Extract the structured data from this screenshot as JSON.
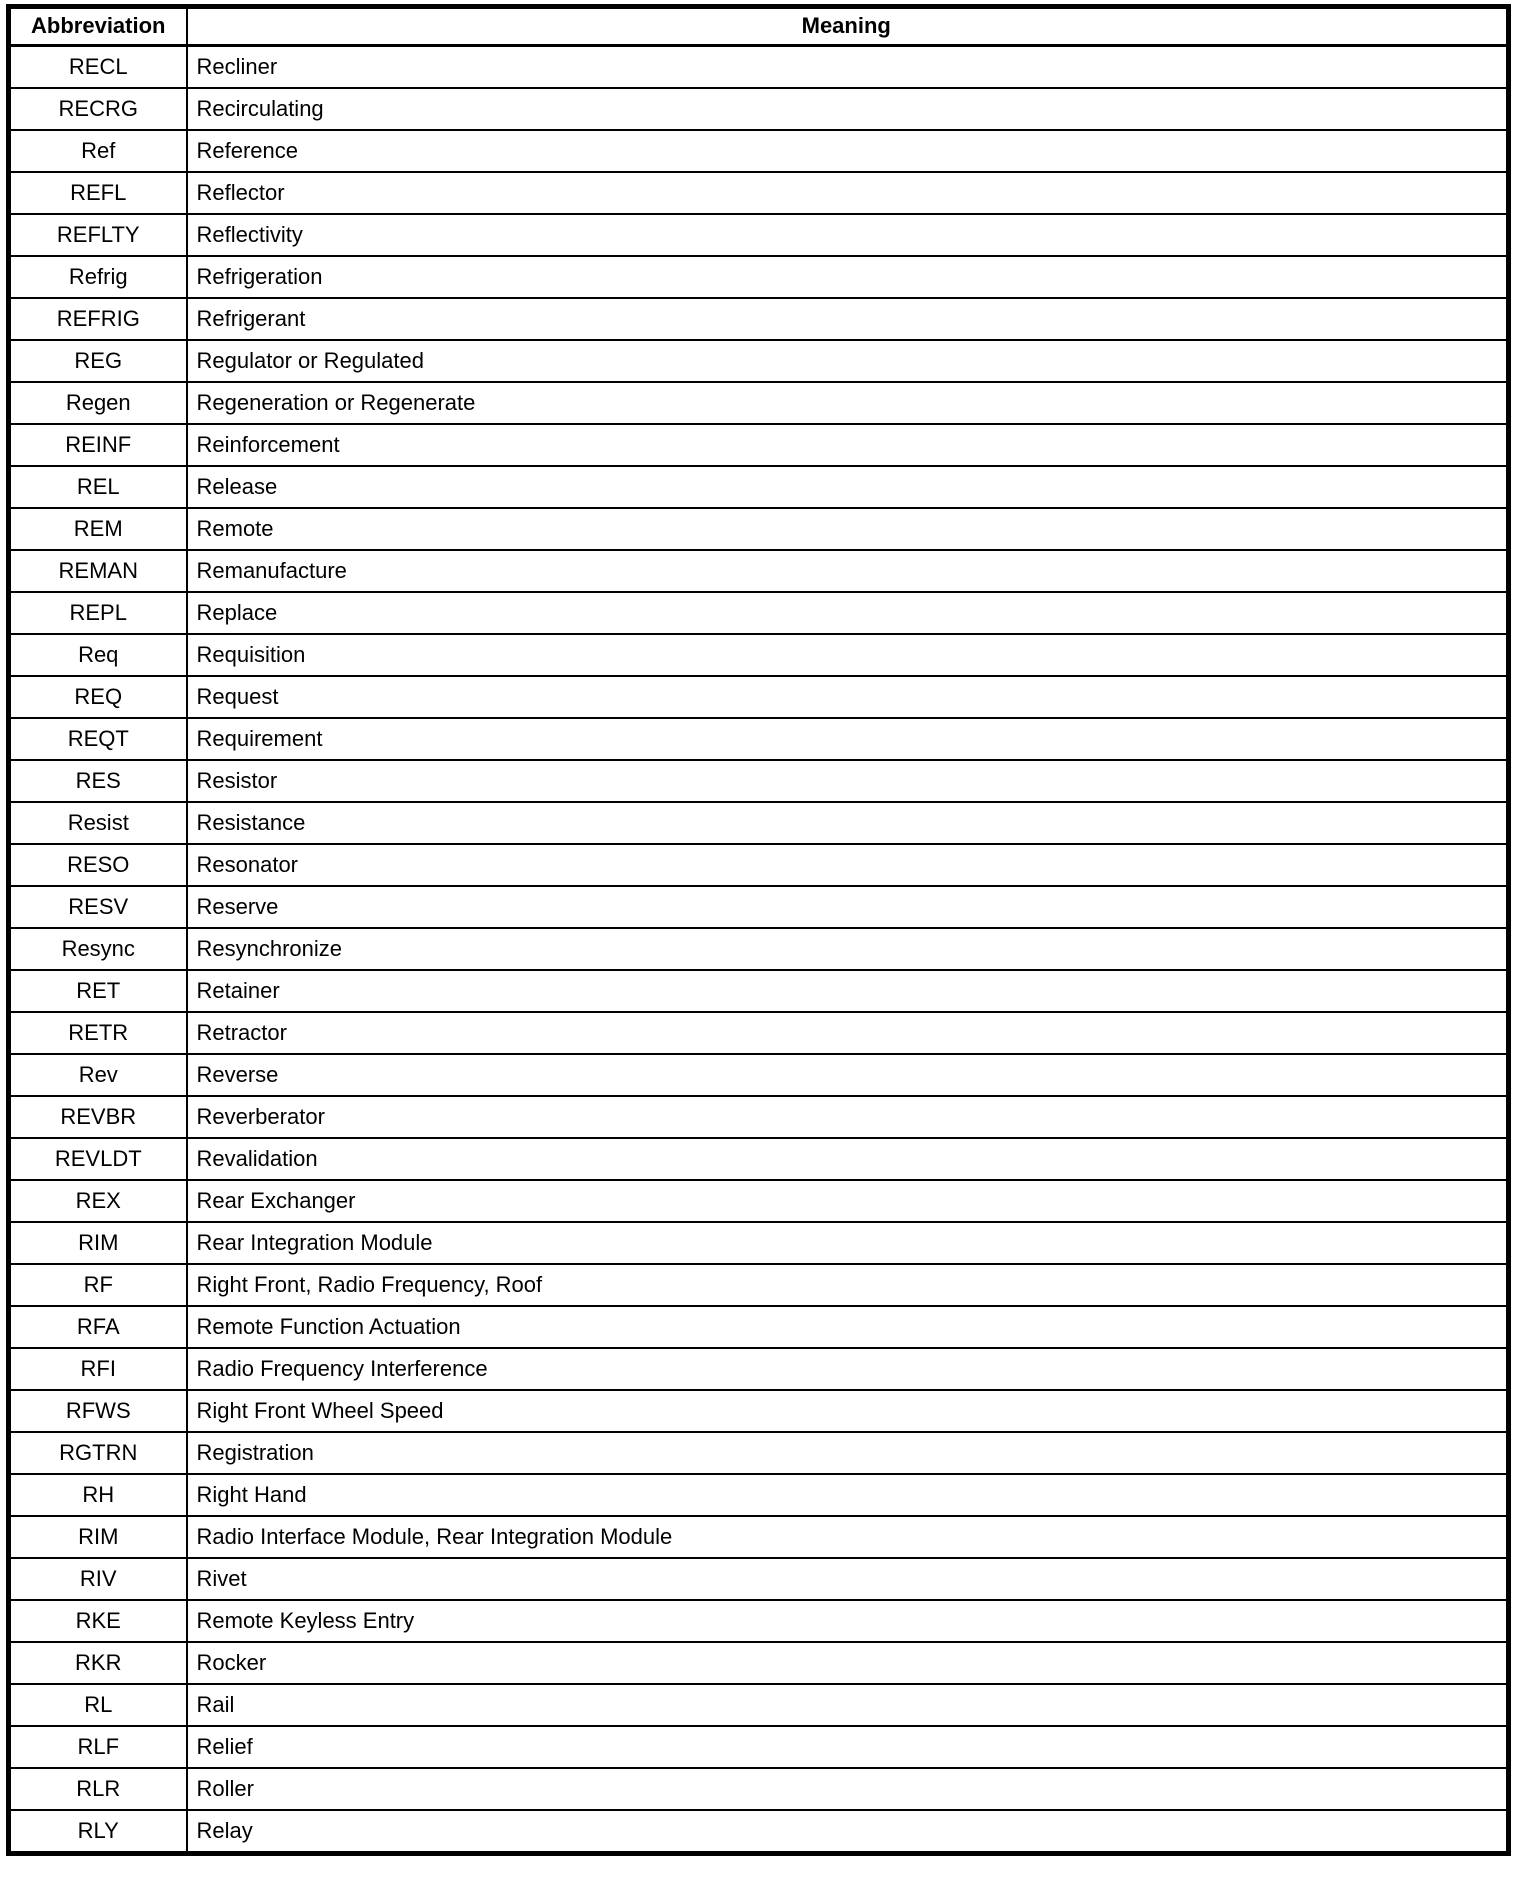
{
  "page": {
    "background": "#ffffff",
    "text_color": "#000000",
    "border_color": "#000000"
  },
  "table": {
    "headers": {
      "abbreviation": "Abbreviation",
      "meaning": "Meaning"
    },
    "rows": [
      {
        "abbr": "RECL",
        "meaning": "Recliner"
      },
      {
        "abbr": "RECRG",
        "meaning": "Recirculating"
      },
      {
        "abbr": "Ref",
        "meaning": "Reference"
      },
      {
        "abbr": "REFL",
        "meaning": "Reflector"
      },
      {
        "abbr": "REFLTY",
        "meaning": "Reflectivity"
      },
      {
        "abbr": "Refrig",
        "meaning": "Refrigeration"
      },
      {
        "abbr": "REFRIG",
        "meaning": "Refrigerant"
      },
      {
        "abbr": "REG",
        "meaning": "Regulator or Regulated"
      },
      {
        "abbr": "Regen",
        "meaning": "Regeneration or Regenerate"
      },
      {
        "abbr": "REINF",
        "meaning": "Reinforcement"
      },
      {
        "abbr": "REL",
        "meaning": "Release"
      },
      {
        "abbr": "REM",
        "meaning": "Remote"
      },
      {
        "abbr": "REMAN",
        "meaning": "Remanufacture"
      },
      {
        "abbr": "REPL",
        "meaning": "Replace"
      },
      {
        "abbr": "Req",
        "meaning": "Requisition"
      },
      {
        "abbr": "REQ",
        "meaning": "Request"
      },
      {
        "abbr": "REQT",
        "meaning": "Requirement"
      },
      {
        "abbr": "RES",
        "meaning": "Resistor"
      },
      {
        "abbr": "Resist",
        "meaning": "Resistance"
      },
      {
        "abbr": "RESO",
        "meaning": "Resonator"
      },
      {
        "abbr": "RESV",
        "meaning": "Reserve"
      },
      {
        "abbr": "Resync",
        "meaning": "Resynchronize"
      },
      {
        "abbr": "RET",
        "meaning": "Retainer"
      },
      {
        "abbr": "RETR",
        "meaning": "Retractor"
      },
      {
        "abbr": "Rev",
        "meaning": "Reverse"
      },
      {
        "abbr": "REVBR",
        "meaning": "Reverberator"
      },
      {
        "abbr": "REVLDT",
        "meaning": "Revalidation"
      },
      {
        "abbr": "REX",
        "meaning": "Rear Exchanger"
      },
      {
        "abbr": "RIM",
        "meaning": "Rear Integration Module"
      },
      {
        "abbr": "RF",
        "meaning": "Right Front, Radio Frequency, Roof"
      },
      {
        "abbr": "RFA",
        "meaning": "Remote Function Actuation"
      },
      {
        "abbr": "RFI",
        "meaning": "Radio Frequency Interference"
      },
      {
        "abbr": "RFWS",
        "meaning": "Right Front Wheel Speed"
      },
      {
        "abbr": "RGTRN",
        "meaning": "Registration"
      },
      {
        "abbr": "RH",
        "meaning": "Right Hand"
      },
      {
        "abbr": "RIM",
        "meaning": "Radio Interface Module, Rear Integration Module"
      },
      {
        "abbr": "RIV",
        "meaning": "Rivet"
      },
      {
        "abbr": "RKE",
        "meaning": "Remote Keyless Entry"
      },
      {
        "abbr": "RKR",
        "meaning": "Rocker"
      },
      {
        "abbr": "RL",
        "meaning": "Rail"
      },
      {
        "abbr": "RLF",
        "meaning": "Relief"
      },
      {
        "abbr": "RLR",
        "meaning": "Roller"
      },
      {
        "abbr": "RLY",
        "meaning": "Relay"
      }
    ]
  }
}
